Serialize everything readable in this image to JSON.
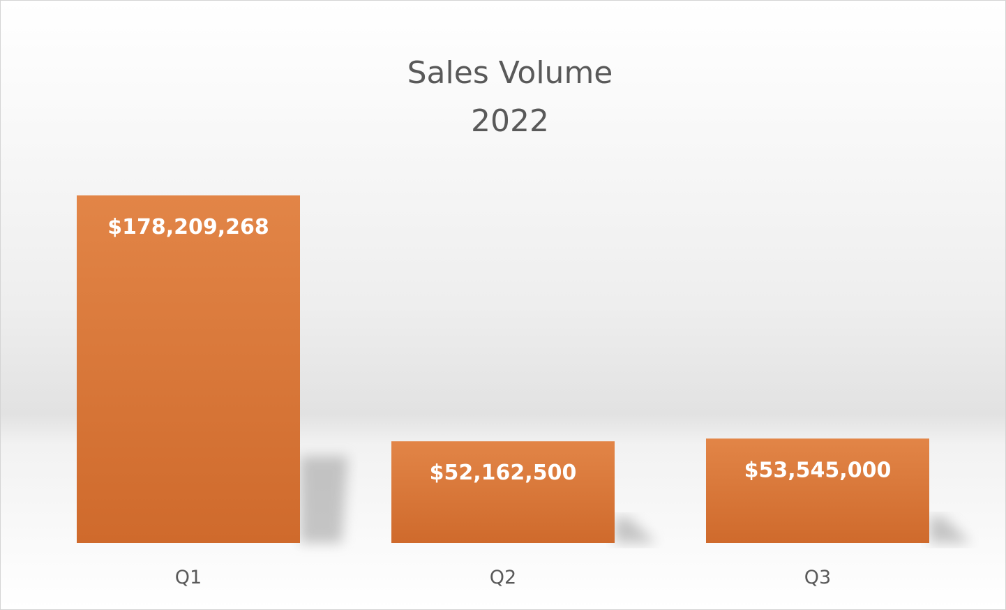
{
  "chart_data": {
    "type": "bar",
    "title": "Sales Volume",
    "subtitle": "2022",
    "categories": [
      "Q1",
      "Q2",
      "Q3"
    ],
    "values": [
      178209268,
      52162500,
      53545000
    ],
    "data_labels": [
      "$178,209,268",
      "$52,162,500",
      "$53,545,000"
    ],
    "xlabel": "",
    "ylabel": "",
    "ylim": [
      0,
      178209268
    ],
    "grid": false,
    "legend": "none",
    "colors": {
      "bar_top": "#e28547",
      "bar_bottom": "#cf6a2c",
      "title": "#595959",
      "label": "#ffffff"
    }
  }
}
